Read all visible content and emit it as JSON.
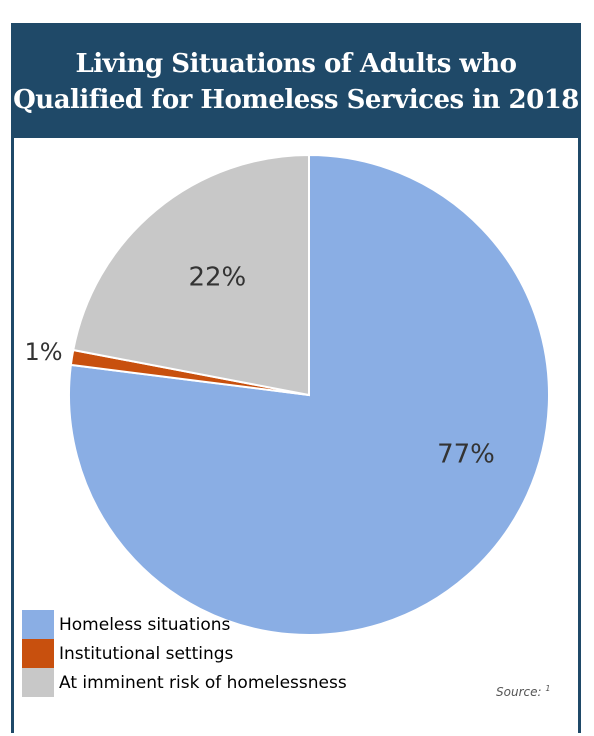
{
  "chart_data": {
    "type": "pie",
    "title_lines": [
      "Living Situations of Adults who",
      "Qualified for Homeless Services in 2018"
    ],
    "slices": [
      {
        "label": "Homeless situations",
        "value": 77,
        "display": "77%",
        "color": "#8aaee4"
      },
      {
        "label": "Institutional settings",
        "value": 1,
        "display": "1%",
        "color": "#c8500e"
      },
      {
        "label": "At imminent risk of homelessness",
        "value": 22,
        "display": "22%",
        "color": "#c8c8c8"
      }
    ],
    "legend_position": "bottom-left"
  },
  "source": {
    "label": "Source:",
    "note": "1"
  },
  "colors": {
    "header_bg": "#1f4968",
    "border": "#1f4968",
    "slice_stroke": "#ffffff"
  }
}
